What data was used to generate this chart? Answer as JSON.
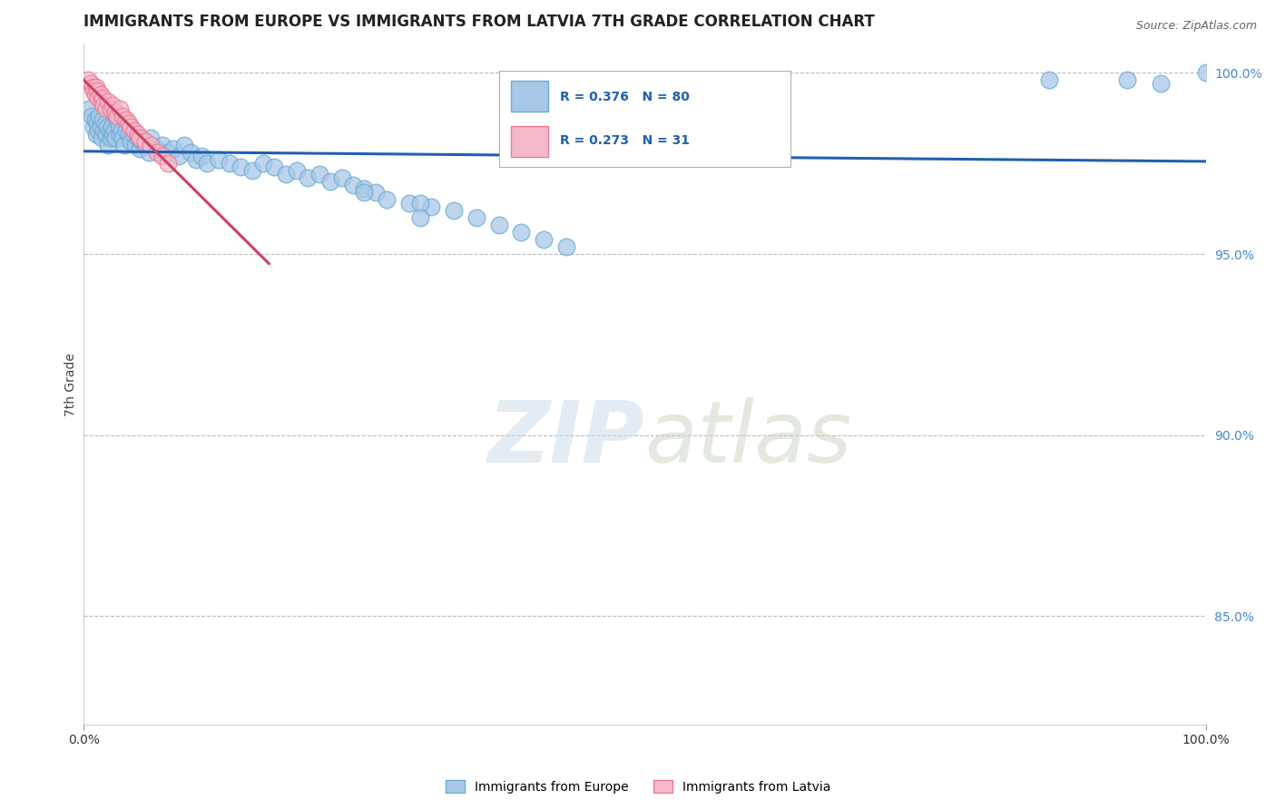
{
  "title": "IMMIGRANTS FROM EUROPE VS IMMIGRANTS FROM LATVIA 7TH GRADE CORRELATION CHART",
  "source_text": "Source: ZipAtlas.com",
  "ylabel": "7th Grade",
  "xlim": [
    0.0,
    1.0
  ],
  "ylim": [
    0.82,
    1.008
  ],
  "x_tick_vals": [
    0.0,
    1.0
  ],
  "x_tick_labels": [
    "0.0%",
    "100.0%"
  ],
  "y_tick_vals": [
    0.85,
    0.9,
    0.95,
    1.0
  ],
  "y_tick_labels": [
    "85.0%",
    "90.0%",
    "95.0%",
    "100.0%"
  ],
  "blue_color": "#a8c8e8",
  "blue_edge_color": "#6aaad4",
  "pink_color": "#f4b8c8",
  "pink_edge_color": "#e87898",
  "trend_blue": "#2060b0",
  "trend_pink": "#d04060",
  "legend_blue_text": "R = 0.376   N = 80",
  "legend_pink_text": "R = 0.273   N = 31",
  "watermark": "ZIPatlas",
  "blue_x": [
    0.005,
    0.007,
    0.009,
    0.01,
    0.011,
    0.012,
    0.013,
    0.014,
    0.015,
    0.016,
    0.017,
    0.018,
    0.019,
    0.02,
    0.021,
    0.022,
    0.023,
    0.024,
    0.025,
    0.026,
    0.027,
    0.028,
    0.03,
    0.031,
    0.032,
    0.034,
    0.035,
    0.036,
    0.038,
    0.04,
    0.042,
    0.044,
    0.046,
    0.048,
    0.05,
    0.052,
    0.055,
    0.058,
    0.06,
    0.065,
    0.07,
    0.075,
    0.08,
    0.085,
    0.09,
    0.095,
    0.1,
    0.105,
    0.11,
    0.12,
    0.13,
    0.14,
    0.15,
    0.16,
    0.17,
    0.18,
    0.19,
    0.2,
    0.21,
    0.22,
    0.23,
    0.24,
    0.25,
    0.26,
    0.27,
    0.29,
    0.31,
    0.33,
    0.35,
    0.37,
    0.39,
    0.41,
    0.43,
    0.25,
    0.3,
    0.3,
    0.86,
    0.93,
    0.96,
    1.0
  ],
  "blue_y": [
    0.99,
    0.988,
    0.985,
    0.987,
    0.983,
    0.986,
    0.984,
    0.988,
    0.985,
    0.982,
    0.987,
    0.984,
    0.986,
    0.983,
    0.985,
    0.98,
    0.984,
    0.982,
    0.985,
    0.983,
    0.984,
    0.982,
    0.987,
    0.985,
    0.983,
    0.984,
    0.982,
    0.98,
    0.984,
    0.983,
    0.981,
    0.983,
    0.98,
    0.982,
    0.979,
    0.981,
    0.98,
    0.978,
    0.982,
    0.979,
    0.98,
    0.978,
    0.979,
    0.977,
    0.98,
    0.978,
    0.976,
    0.977,
    0.975,
    0.976,
    0.975,
    0.974,
    0.973,
    0.975,
    0.974,
    0.972,
    0.973,
    0.971,
    0.972,
    0.97,
    0.971,
    0.969,
    0.968,
    0.967,
    0.965,
    0.964,
    0.963,
    0.962,
    0.96,
    0.958,
    0.956,
    0.954,
    0.952,
    0.967,
    0.964,
    0.96,
    0.998,
    0.998,
    0.997,
    1.0
  ],
  "pink_x": [
    0.004,
    0.006,
    0.008,
    0.009,
    0.01,
    0.011,
    0.012,
    0.013,
    0.015,
    0.016,
    0.017,
    0.018,
    0.02,
    0.022,
    0.024,
    0.026,
    0.028,
    0.03,
    0.032,
    0.035,
    0.038,
    0.04,
    0.042,
    0.045,
    0.048,
    0.05,
    0.055,
    0.06,
    0.065,
    0.07,
    0.075
  ],
  "pink_y": [
    0.998,
    0.997,
    0.996,
    0.995,
    0.994,
    0.996,
    0.995,
    0.993,
    0.994,
    0.992,
    0.993,
    0.991,
    0.99,
    0.992,
    0.99,
    0.991,
    0.989,
    0.988,
    0.99,
    0.988,
    0.987,
    0.986,
    0.985,
    0.984,
    0.983,
    0.982,
    0.981,
    0.98,
    0.978,
    0.977,
    0.975
  ]
}
